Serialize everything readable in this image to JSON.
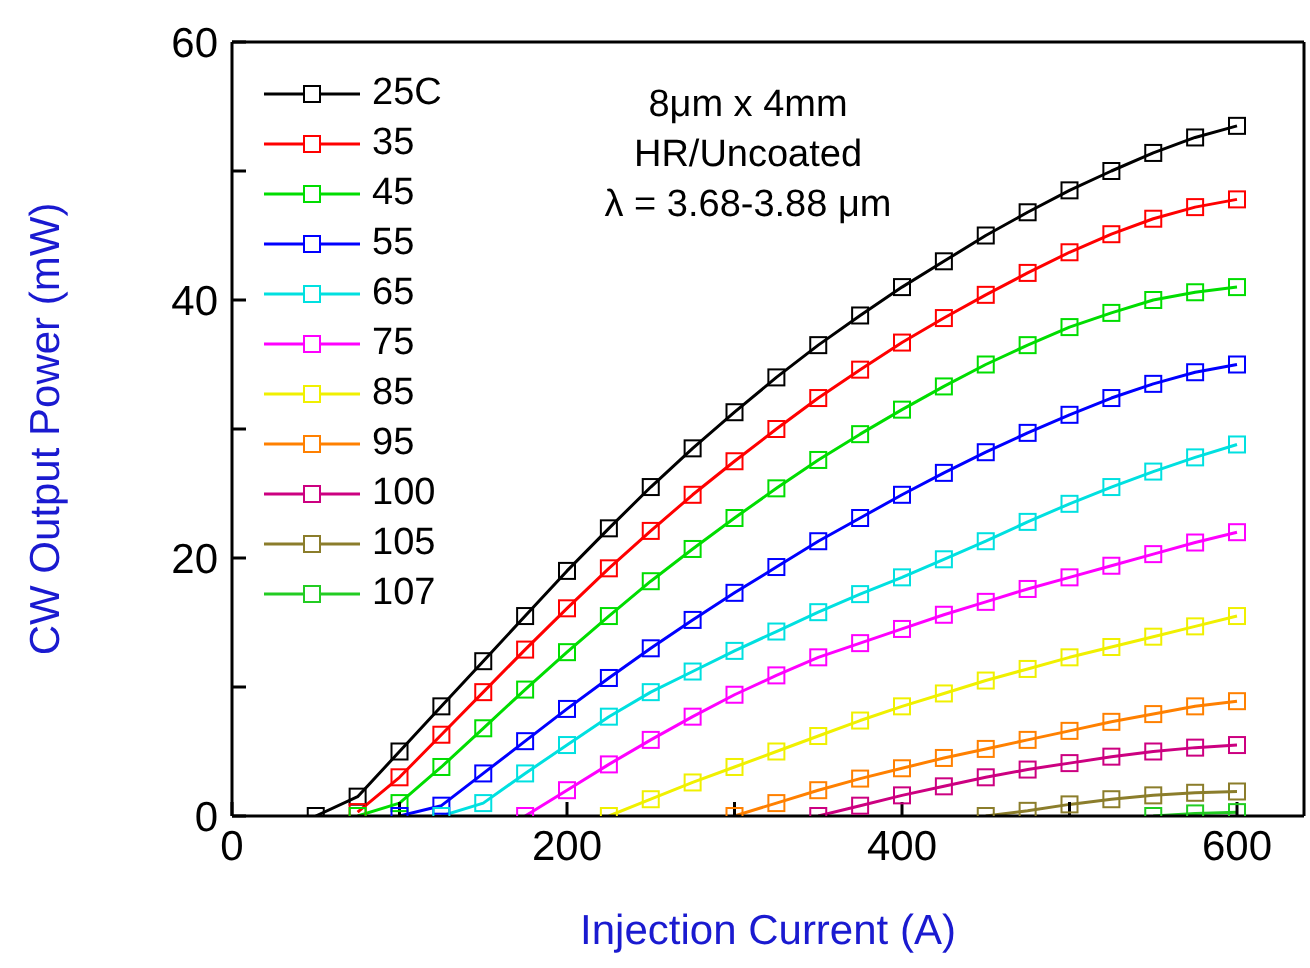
{
  "chart_data": {
    "type": "line",
    "xlabel": "Injection Current (A)",
    "ylabel": "CW Output Power (mW)",
    "annotations": [
      "8μm x 4mm",
      "HR/Uncoated",
      "λ = 3.68-3.88 μm"
    ],
    "x": [
      50,
      75,
      100,
      125,
      150,
      175,
      200,
      225,
      250,
      275,
      300,
      325,
      350,
      375,
      400,
      425,
      450,
      475,
      500,
      525,
      550,
      575,
      600
    ],
    "xlim": [
      0,
      640
    ],
    "xticks": [
      0,
      {
        "value": 100,
        "label": null
      },
      200,
      {
        "value": 300,
        "label": null
      },
      400,
      {
        "value": 500,
        "label": null
      },
      600
    ],
    "ylim": [
      0,
      60
    ],
    "yticks": [
      0,
      {
        "value": 10,
        "label": null
      },
      20,
      {
        "value": 30,
        "label": null
      },
      40,
      {
        "value": 50,
        "label": null
      },
      60
    ],
    "grid": false,
    "legend": "top left",
    "marker": "square",
    "line_style": "solid",
    "series": [
      {
        "name": "25C",
        "color": "#000000",
        "values": [
          0,
          1.5,
          5,
          8.5,
          12,
          15.5,
          19,
          22.3,
          25.5,
          28.5,
          31.3,
          34,
          36.5,
          38.8,
          41,
          43,
          45,
          46.8,
          48.5,
          50,
          51.4,
          52.6,
          53.5
        ]
      },
      {
        "name": "35",
        "color": "#ff0000",
        "values": [
          null,
          0.3,
          3,
          6.3,
          9.6,
          12.9,
          16.1,
          19.2,
          22.1,
          24.9,
          27.5,
          30,
          32.4,
          34.6,
          36.7,
          38.6,
          40.4,
          42.1,
          43.7,
          45.1,
          46.3,
          47.2,
          47.8
        ]
      },
      {
        "name": "45",
        "color": "#00dd00",
        "values": [
          null,
          0,
          1,
          3.8,
          6.8,
          9.8,
          12.7,
          15.5,
          18.2,
          20.7,
          23.1,
          25.4,
          27.6,
          29.6,
          31.5,
          33.3,
          35,
          36.5,
          37.9,
          39,
          40,
          40.6,
          41
        ]
      },
      {
        "name": "55",
        "color": "#0000ff",
        "values": [
          null,
          null,
          0,
          0.8,
          3.3,
          5.8,
          8.3,
          10.7,
          13,
          15.2,
          17.3,
          19.3,
          21.3,
          23.1,
          24.9,
          26.6,
          28.2,
          29.7,
          31.1,
          32.4,
          33.5,
          34.4,
          35
        ]
      },
      {
        "name": "65",
        "color": "#00e0e0",
        "values": [
          null,
          null,
          null,
          0,
          1,
          3.3,
          5.5,
          7.7,
          9.6,
          11.2,
          12.8,
          14.3,
          15.8,
          17.2,
          18.5,
          19.9,
          21.3,
          22.8,
          24.2,
          25.5,
          26.7,
          27.8,
          28.8
        ]
      },
      {
        "name": "75",
        "color": "#ff00ff",
        "values": [
          null,
          null,
          null,
          null,
          null,
          0,
          2,
          4,
          5.9,
          7.7,
          9.4,
          10.9,
          12.3,
          13.4,
          14.5,
          15.6,
          16.6,
          17.6,
          18.5,
          19.4,
          20.3,
          21.2,
          22
        ]
      },
      {
        "name": "85",
        "color": "#f0f000",
        "values": [
          null,
          null,
          null,
          null,
          null,
          null,
          null,
          0,
          1.3,
          2.6,
          3.8,
          5,
          6.2,
          7.4,
          8.5,
          9.5,
          10.5,
          11.4,
          12.3,
          13.1,
          13.9,
          14.7,
          15.5
        ]
      },
      {
        "name": "95",
        "color": "#ff8000",
        "values": [
          null,
          null,
          null,
          null,
          null,
          null,
          null,
          null,
          null,
          null,
          0,
          1,
          2,
          2.9,
          3.7,
          4.5,
          5.2,
          5.9,
          6.6,
          7.3,
          7.9,
          8.5,
          8.9
        ]
      },
      {
        "name": "100",
        "color": "#cc0080",
        "values": [
          null,
          null,
          null,
          null,
          null,
          null,
          null,
          null,
          null,
          null,
          null,
          null,
          0,
          0.8,
          1.6,
          2.3,
          3,
          3.6,
          4.1,
          4.6,
          5,
          5.3,
          5.5
        ]
      },
      {
        "name": "105",
        "color": "#8b7d2b",
        "values": [
          null,
          null,
          null,
          null,
          null,
          null,
          null,
          null,
          null,
          null,
          null,
          null,
          null,
          null,
          null,
          null,
          0,
          0.4,
          0.9,
          1.3,
          1.6,
          1.8,
          1.9
        ]
      },
      {
        "name": "107",
        "color": "#22cc22",
        "values": [
          null,
          null,
          null,
          null,
          null,
          null,
          null,
          null,
          null,
          null,
          null,
          null,
          null,
          null,
          null,
          null,
          null,
          null,
          null,
          null,
          0,
          0.2,
          0.3
        ]
      }
    ]
  }
}
